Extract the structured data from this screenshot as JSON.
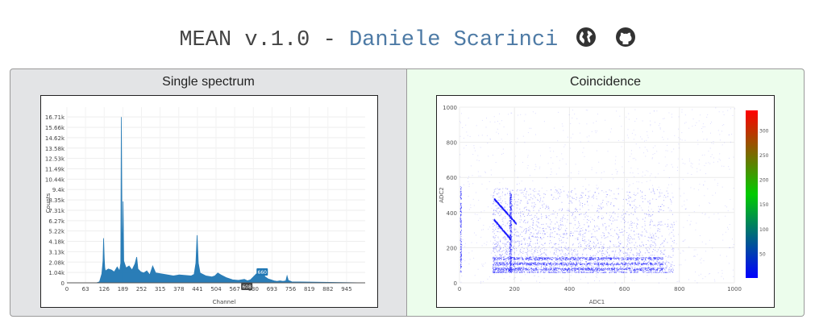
{
  "header": {
    "title_prefix": "MEAN v.1.0 - ",
    "author": "Daniele Scarinci",
    "icons": [
      "globe-icon",
      "github-icon"
    ]
  },
  "panels": {
    "left_title": "Single spectrum",
    "right_title": "Coincidence"
  },
  "chart_data": [
    {
      "type": "area",
      "title": "",
      "xlabel": "Channel",
      "ylabel": "Counts",
      "xlim": [
        0,
        1008
      ],
      "ylim": [
        0,
        17700
      ],
      "x_ticks": [
        "0",
        "63",
        "126",
        "189",
        "252",
        "315",
        "378",
        "441",
        "504",
        "567",
        "630",
        "693",
        "756",
        "819",
        "882",
        "945"
      ],
      "y_ticks": [
        "0",
        "1.04k",
        "2.08k",
        "3.13k",
        "4.18k",
        "5.22k",
        "6.27k",
        "7.31k",
        "8.35k",
        "9.4k",
        "10.44k",
        "11.49k",
        "12.53k",
        "13.58k",
        "14.62k",
        "15.66k",
        "16.71k"
      ],
      "color": "#1f77b4",
      "series": [
        {
          "x": [
            0,
            100,
            110,
            118,
            122,
            124,
            126,
            128,
            130,
            140,
            150,
            160,
            170,
            178,
            180,
            182,
            184,
            186,
            188,
            190,
            192,
            200,
            210,
            220,
            230,
            236,
            240,
            250,
            260,
            270,
            280,
            290,
            300,
            320,
            340,
            360,
            380,
            400,
            420,
            430,
            436,
            440,
            444,
            450,
            470,
            490,
            500,
            510,
            520,
            540,
            560,
            580,
            590,
            600,
            610,
            620,
            630,
            640,
            650,
            660,
            670,
            680,
            690,
            700,
            710,
            720,
            730,
            740,
            744,
            748,
            760,
            1008
          ],
          "y": [
            0,
            0,
            100,
            900,
            2200,
            4500,
            2500,
            1500,
            1200,
            1400,
            1300,
            1100,
            1600,
            1200,
            1600,
            2000,
            16700,
            6000,
            2500,
            8200,
            2200,
            1500,
            1700,
            1300,
            1900,
            2600,
            1400,
            1100,
            1000,
            1200,
            800,
            1700,
            1000,
            900,
            800,
            700,
            800,
            750,
            700,
            850,
            2000,
            4800,
            2000,
            1000,
            700,
            600,
            700,
            1000,
            800,
            500,
            300,
            250,
            300,
            350,
            200,
            300,
            600,
            900,
            700,
            1100,
            600,
            400,
            300,
            200,
            150,
            200,
            150,
            200,
            700,
            250,
            100,
            0
          ]
        }
      ],
      "annotations": [
        {
          "x": 660,
          "text": "660"
        },
        {
          "x": 608,
          "text": "608"
        }
      ]
    },
    {
      "type": "heatmap",
      "title": "",
      "xlabel": "ADC1",
      "ylabel": "ADC2",
      "xlim": [
        0,
        1000
      ],
      "ylim": [
        0,
        1000
      ],
      "x_ticks": [
        "0",
        "200",
        "400",
        "600",
        "800",
        "1000"
      ],
      "y_ticks": [
        "0",
        "200",
        "400",
        "600",
        "800",
        "1000"
      ],
      "colorbar_ticks": [
        "50",
        "100",
        "150",
        "200",
        "250",
        "300"
      ],
      "colorbar_range": [
        0,
        340
      ],
      "colorscale": [
        "#0000ff",
        "#00cc00",
        "#ff0000"
      ]
    }
  ]
}
